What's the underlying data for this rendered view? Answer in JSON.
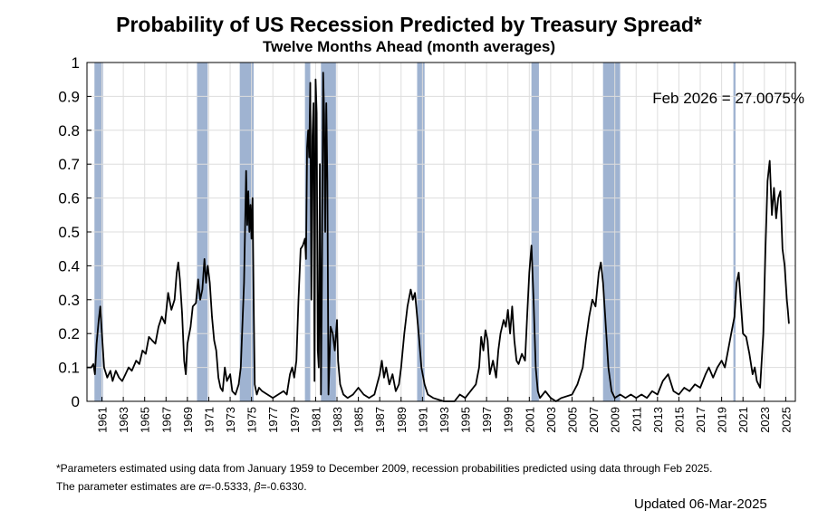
{
  "chart_data": {
    "type": "line",
    "title": "Probability of US Recession Predicted by Treasury Spread*",
    "subtitle": "Twelve Months Ahead (month averages)",
    "xlabel": "",
    "ylabel": "",
    "xlim": [
      1959.6,
      2025.9
    ],
    "ylim": [
      0,
      1
    ],
    "grid": true,
    "y_ticks": [
      "0",
      "0.1",
      "0.2",
      "0.3",
      "0.4",
      "0.5",
      "0.6",
      "0.7",
      "0.8",
      "0.9",
      "1"
    ],
    "y_tick_values": [
      0,
      0.1,
      0.2,
      0.3,
      0.4,
      0.5,
      0.6,
      0.7,
      0.8,
      0.9,
      1
    ],
    "x_ticks": [
      "1961",
      "1963",
      "1965",
      "1967",
      "1969",
      "1971",
      "1973",
      "1975",
      "1977",
      "1979",
      "1981",
      "1983",
      "1985",
      "1987",
      "1989",
      "1991",
      "1993",
      "1995",
      "1997",
      "1999",
      "2001",
      "2003",
      "2005",
      "2007",
      "2009",
      "2011",
      "2013",
      "2015",
      "2017",
      "2019",
      "2021",
      "2023",
      "2025"
    ],
    "x_tick_values": [
      1961,
      1963,
      1965,
      1967,
      1969,
      1971,
      1973,
      1975,
      1977,
      1979,
      1981,
      1983,
      1985,
      1987,
      1989,
      1991,
      1993,
      1995,
      1997,
      1999,
      2001,
      2003,
      2005,
      2007,
      2009,
      2011,
      2013,
      2015,
      2017,
      2019,
      2021,
      2023,
      2025
    ],
    "recessions": [
      {
        "start": 1960.3,
        "end": 1961.1
      },
      {
        "start": 1969.9,
        "end": 1970.9
      },
      {
        "start": 1973.9,
        "end": 1975.2
      },
      {
        "start": 1980.0,
        "end": 1980.5
      },
      {
        "start": 1981.5,
        "end": 1982.9
      },
      {
        "start": 1990.5,
        "end": 1991.2
      },
      {
        "start": 2001.2,
        "end": 2001.9
      },
      {
        "start": 2007.9,
        "end": 2009.5
      },
      {
        "start": 2020.1,
        "end": 2020.3
      }
    ],
    "annotation": "Feb 2026 = 27.0075%",
    "series": [
      {
        "name": "Recession probability",
        "color": "#000000",
        "points": [
          [
            1959.6,
            0.1
          ],
          [
            1960.0,
            0.1
          ],
          [
            1960.2,
            0.11
          ],
          [
            1960.35,
            0.08
          ],
          [
            1960.5,
            0.17
          ],
          [
            1960.7,
            0.24
          ],
          [
            1960.85,
            0.28
          ],
          [
            1961.0,
            0.2
          ],
          [
            1961.2,
            0.1
          ],
          [
            1961.5,
            0.07
          ],
          [
            1961.8,
            0.09
          ],
          [
            1962.0,
            0.06
          ],
          [
            1962.3,
            0.09
          ],
          [
            1962.6,
            0.07
          ],
          [
            1962.9,
            0.06
          ],
          [
            1963.2,
            0.08
          ],
          [
            1963.5,
            0.1
          ],
          [
            1963.8,
            0.09
          ],
          [
            1964.2,
            0.12
          ],
          [
            1964.5,
            0.11
          ],
          [
            1964.8,
            0.15
          ],
          [
            1965.1,
            0.14
          ],
          [
            1965.4,
            0.19
          ],
          [
            1965.7,
            0.18
          ],
          [
            1966.0,
            0.17
          ],
          [
            1966.3,
            0.22
          ],
          [
            1966.6,
            0.25
          ],
          [
            1966.9,
            0.23
          ],
          [
            1967.2,
            0.32
          ],
          [
            1967.5,
            0.27
          ],
          [
            1967.8,
            0.3
          ],
          [
            1968.0,
            0.38
          ],
          [
            1968.15,
            0.41
          ],
          [
            1968.3,
            0.36
          ],
          [
            1968.5,
            0.26
          ],
          [
            1968.7,
            0.12
          ],
          [
            1968.85,
            0.08
          ],
          [
            1969.0,
            0.17
          ],
          [
            1969.3,
            0.22
          ],
          [
            1969.5,
            0.28
          ],
          [
            1969.8,
            0.29
          ],
          [
            1970.0,
            0.36
          ],
          [
            1970.2,
            0.3
          ],
          [
            1970.4,
            0.33
          ],
          [
            1970.6,
            0.42
          ],
          [
            1970.75,
            0.35
          ],
          [
            1970.9,
            0.4
          ],
          [
            1971.1,
            0.35
          ],
          [
            1971.3,
            0.25
          ],
          [
            1971.5,
            0.18
          ],
          [
            1971.7,
            0.15
          ],
          [
            1971.9,
            0.07
          ],
          [
            1972.1,
            0.04
          ],
          [
            1972.3,
            0.03
          ],
          [
            1972.5,
            0.1
          ],
          [
            1972.7,
            0.06
          ],
          [
            1973.0,
            0.08
          ],
          [
            1973.2,
            0.03
          ],
          [
            1973.5,
            0.02
          ],
          [
            1973.8,
            0.05
          ],
          [
            1974.0,
            0.1
          ],
          [
            1974.3,
            0.35
          ],
          [
            1974.5,
            0.68
          ],
          [
            1974.6,
            0.52
          ],
          [
            1974.7,
            0.62
          ],
          [
            1974.8,
            0.5
          ],
          [
            1974.9,
            0.58
          ],
          [
            1975.0,
            0.48
          ],
          [
            1975.1,
            0.6
          ],
          [
            1975.2,
            0.3
          ],
          [
            1975.3,
            0.05
          ],
          [
            1975.5,
            0.02
          ],
          [
            1975.7,
            0.04
          ],
          [
            1976.0,
            0.03
          ],
          [
            1976.5,
            0.02
          ],
          [
            1977.0,
            0.01
          ],
          [
            1977.5,
            0.02
          ],
          [
            1978.0,
            0.03
          ],
          [
            1978.3,
            0.02
          ],
          [
            1978.6,
            0.08
          ],
          [
            1978.8,
            0.1
          ],
          [
            1979.0,
            0.07
          ],
          [
            1979.2,
            0.12
          ],
          [
            1979.4,
            0.3
          ],
          [
            1979.6,
            0.45
          ],
          [
            1979.8,
            0.46
          ],
          [
            1980.0,
            0.48
          ],
          [
            1980.1,
            0.42
          ],
          [
            1980.2,
            0.75
          ],
          [
            1980.3,
            0.8
          ],
          [
            1980.4,
            0.72
          ],
          [
            1980.5,
            0.94
          ],
          [
            1980.6,
            0.3
          ],
          [
            1980.7,
            0.78
          ],
          [
            1980.8,
            0.88
          ],
          [
            1980.9,
            0.06
          ],
          [
            1981.0,
            0.95
          ],
          [
            1981.1,
            0.85
          ],
          [
            1981.2,
            0.15
          ],
          [
            1981.3,
            0.1
          ],
          [
            1981.4,
            0.7
          ],
          [
            1981.5,
            0.02
          ],
          [
            1981.6,
            0.4
          ],
          [
            1981.7,
            0.97
          ],
          [
            1981.8,
            0.85
          ],
          [
            1981.9,
            0.5
          ],
          [
            1982.0,
            0.88
          ],
          [
            1982.1,
            0.65
          ],
          [
            1982.2,
            0.02
          ],
          [
            1982.4,
            0.22
          ],
          [
            1982.6,
            0.2
          ],
          [
            1982.8,
            0.15
          ],
          [
            1983.0,
            0.24
          ],
          [
            1983.1,
            0.12
          ],
          [
            1983.3,
            0.05
          ],
          [
            1983.6,
            0.02
          ],
          [
            1984.0,
            0.01
          ],
          [
            1984.5,
            0.02
          ],
          [
            1985.0,
            0.04
          ],
          [
            1985.5,
            0.02
          ],
          [
            1986.0,
            0.01
          ],
          [
            1986.5,
            0.02
          ],
          [
            1987.0,
            0.08
          ],
          [
            1987.2,
            0.12
          ],
          [
            1987.4,
            0.07
          ],
          [
            1987.6,
            0.1
          ],
          [
            1987.9,
            0.05
          ],
          [
            1988.2,
            0.08
          ],
          [
            1988.5,
            0.03
          ],
          [
            1988.8,
            0.05
          ],
          [
            1989.0,
            0.1
          ],
          [
            1989.3,
            0.2
          ],
          [
            1989.6,
            0.28
          ],
          [
            1989.9,
            0.33
          ],
          [
            1990.1,
            0.3
          ],
          [
            1990.3,
            0.32
          ],
          [
            1990.5,
            0.25
          ],
          [
            1990.7,
            0.18
          ],
          [
            1990.9,
            0.1
          ],
          [
            1991.2,
            0.05
          ],
          [
            1991.5,
            0.02
          ],
          [
            1992.0,
            0.01
          ],
          [
            1993.0,
            0.0
          ],
          [
            1994.0,
            0.0
          ],
          [
            1994.5,
            0.02
          ],
          [
            1995.0,
            0.01
          ],
          [
            1995.5,
            0.03
          ],
          [
            1996.0,
            0.05
          ],
          [
            1996.3,
            0.1
          ],
          [
            1996.5,
            0.19
          ],
          [
            1996.7,
            0.15
          ],
          [
            1996.9,
            0.21
          ],
          [
            1997.1,
            0.18
          ],
          [
            1997.3,
            0.08
          ],
          [
            1997.6,
            0.12
          ],
          [
            1997.9,
            0.07
          ],
          [
            1998.1,
            0.15
          ],
          [
            1998.3,
            0.2
          ],
          [
            1998.6,
            0.24
          ],
          [
            1998.8,
            0.22
          ],
          [
            1999.0,
            0.27
          ],
          [
            1999.2,
            0.2
          ],
          [
            1999.4,
            0.28
          ],
          [
            1999.6,
            0.18
          ],
          [
            1999.8,
            0.12
          ],
          [
            2000.0,
            0.11
          ],
          [
            2000.3,
            0.14
          ],
          [
            2000.6,
            0.12
          ],
          [
            2000.8,
            0.25
          ],
          [
            2001.0,
            0.38
          ],
          [
            2001.2,
            0.46
          ],
          [
            2001.4,
            0.3
          ],
          [
            2001.6,
            0.1
          ],
          [
            2001.8,
            0.03
          ],
          [
            2002.0,
            0.01
          ],
          [
            2002.5,
            0.03
          ],
          [
            2003.0,
            0.01
          ],
          [
            2003.5,
            0.0
          ],
          [
            2004.0,
            0.01
          ],
          [
            2005.0,
            0.02
          ],
          [
            2005.5,
            0.05
          ],
          [
            2006.0,
            0.1
          ],
          [
            2006.3,
            0.18
          ],
          [
            2006.6,
            0.25
          ],
          [
            2006.9,
            0.3
          ],
          [
            2007.2,
            0.28
          ],
          [
            2007.5,
            0.38
          ],
          [
            2007.7,
            0.41
          ],
          [
            2007.9,
            0.35
          ],
          [
            2008.1,
            0.25
          ],
          [
            2008.4,
            0.1
          ],
          [
            2008.7,
            0.03
          ],
          [
            2009.0,
            0.01
          ],
          [
            2009.5,
            0.02
          ],
          [
            2010.0,
            0.01
          ],
          [
            2010.5,
            0.02
          ],
          [
            2011.0,
            0.01
          ],
          [
            2011.5,
            0.02
          ],
          [
            2012.0,
            0.01
          ],
          [
            2012.5,
            0.03
          ],
          [
            2013.0,
            0.02
          ],
          [
            2013.5,
            0.06
          ],
          [
            2014.0,
            0.08
          ],
          [
            2014.5,
            0.03
          ],
          [
            2015.0,
            0.02
          ],
          [
            2015.5,
            0.04
          ],
          [
            2016.0,
            0.03
          ],
          [
            2016.5,
            0.05
          ],
          [
            2017.0,
            0.04
          ],
          [
            2017.5,
            0.08
          ],
          [
            2017.8,
            0.1
          ],
          [
            2018.2,
            0.07
          ],
          [
            2018.6,
            0.1
          ],
          [
            2019.0,
            0.12
          ],
          [
            2019.3,
            0.1
          ],
          [
            2019.6,
            0.15
          ],
          [
            2019.9,
            0.2
          ],
          [
            2020.2,
            0.25
          ],
          [
            2020.4,
            0.35
          ],
          [
            2020.6,
            0.38
          ],
          [
            2020.8,
            0.29
          ],
          [
            2021.0,
            0.2
          ],
          [
            2021.3,
            0.19
          ],
          [
            2021.6,
            0.14
          ],
          [
            2021.9,
            0.08
          ],
          [
            2022.1,
            0.1
          ],
          [
            2022.3,
            0.06
          ],
          [
            2022.6,
            0.04
          ],
          [
            2022.9,
            0.2
          ],
          [
            2023.1,
            0.45
          ],
          [
            2023.3,
            0.65
          ],
          [
            2023.5,
            0.71
          ],
          [
            2023.7,
            0.55
          ],
          [
            2023.9,
            0.63
          ],
          [
            2024.1,
            0.54
          ],
          [
            2024.3,
            0.6
          ],
          [
            2024.5,
            0.62
          ],
          [
            2024.7,
            0.45
          ],
          [
            2024.9,
            0.4
          ],
          [
            2025.1,
            0.3
          ],
          [
            2025.2,
            0.27
          ],
          [
            2025.3,
            0.23
          ]
        ]
      }
    ]
  },
  "footnote": {
    "line1": "*Parameters estimated using data from January 1959 to December 2009, recession probabilities predicted using data through Feb 2025.",
    "line2_prefix": "The parameter estimates are ",
    "alpha_symbol": "α",
    "alpha_value": "=-0.5333, ",
    "beta_symbol": "β",
    "beta_value": "=-0.6330."
  },
  "updated": "Updated 06-Mar-2025",
  "colors": {
    "recession_band": "#9fb3d1",
    "grid": "#dddddd",
    "line": "#000000"
  }
}
